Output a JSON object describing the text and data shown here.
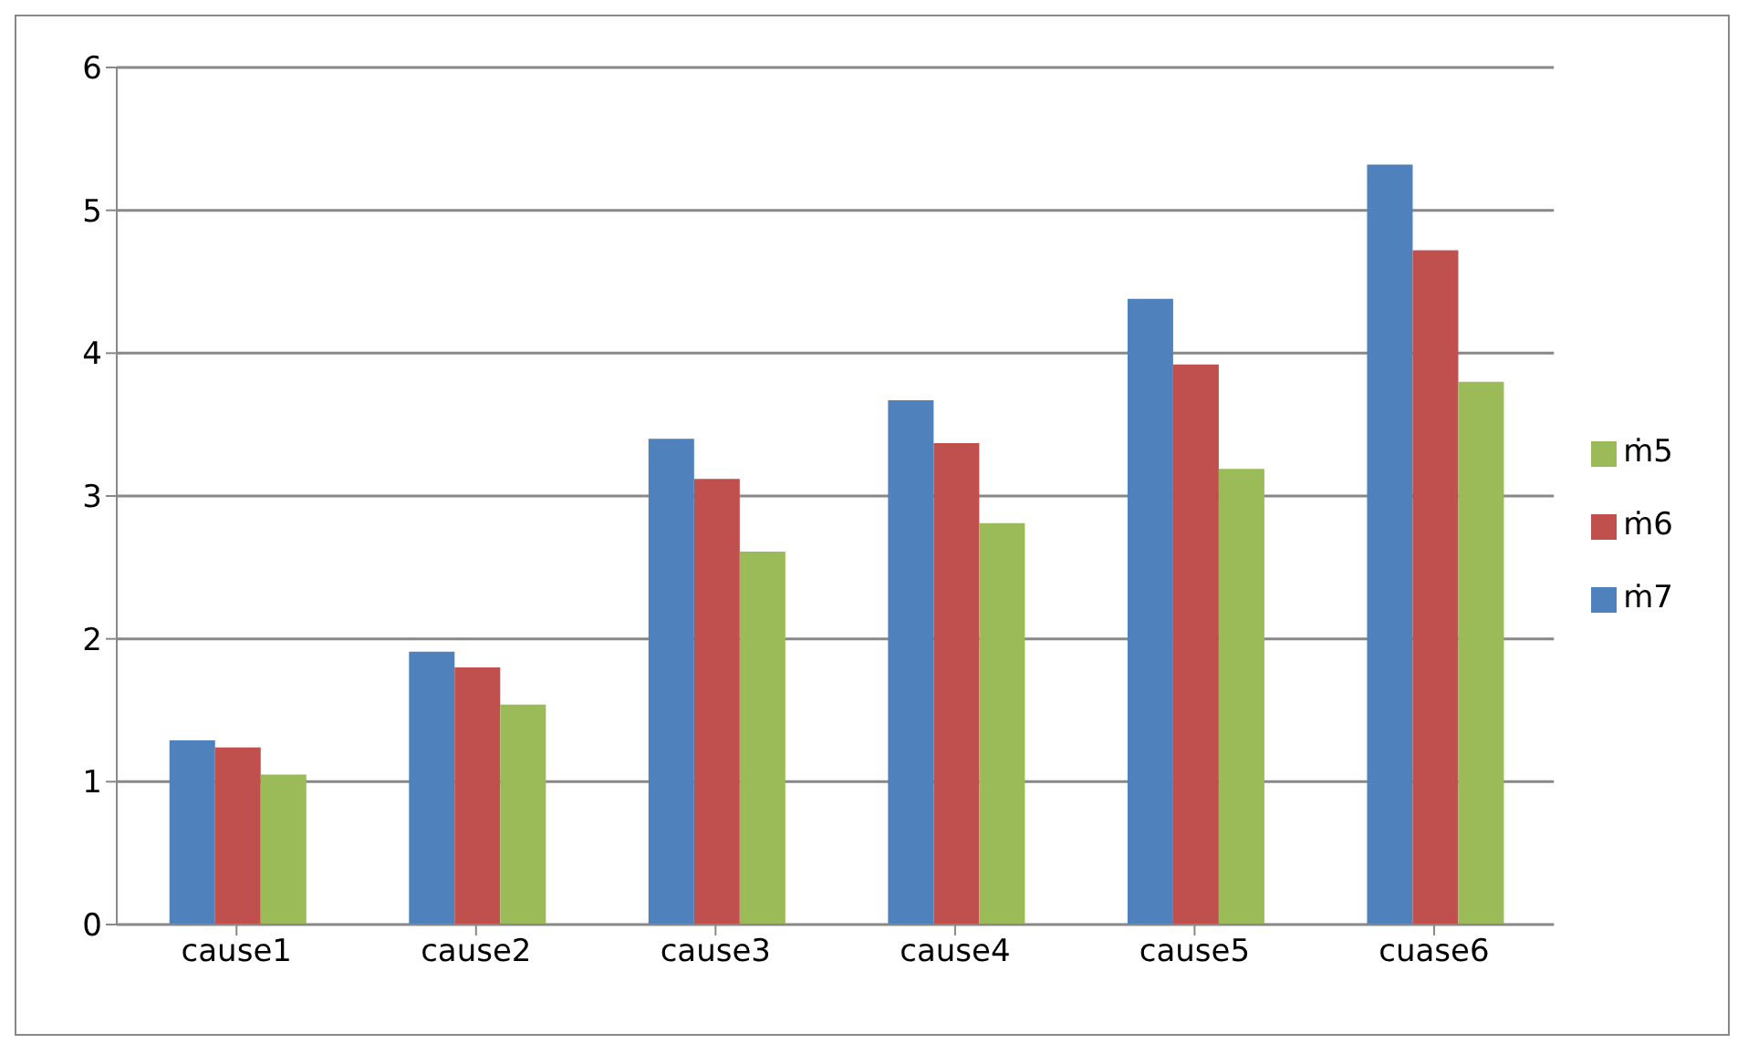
{
  "chart_data": {
    "type": "bar",
    "categories": [
      "cause1",
      "cause2",
      "cause3",
      "cause4",
      "cause5",
      "cuase6"
    ],
    "series": [
      {
        "name": "ṁ7",
        "color": "#4f81bd",
        "values": [
          1.29,
          1.91,
          3.4,
          3.67,
          4.38,
          5.32
        ]
      },
      {
        "name": "ṁ6",
        "color": "#c0504d",
        "values": [
          1.24,
          1.8,
          3.12,
          3.37,
          3.92,
          4.72
        ]
      },
      {
        "name": "ṁ5",
        "color": "#9bbb59",
        "values": [
          1.05,
          1.54,
          2.61,
          2.81,
          3.19,
          3.8
        ]
      }
    ],
    "ylim": [
      0,
      6
    ],
    "yticks": [
      0,
      1,
      2,
      3,
      4,
      5,
      6
    ],
    "grid": "y",
    "legend": "right"
  }
}
